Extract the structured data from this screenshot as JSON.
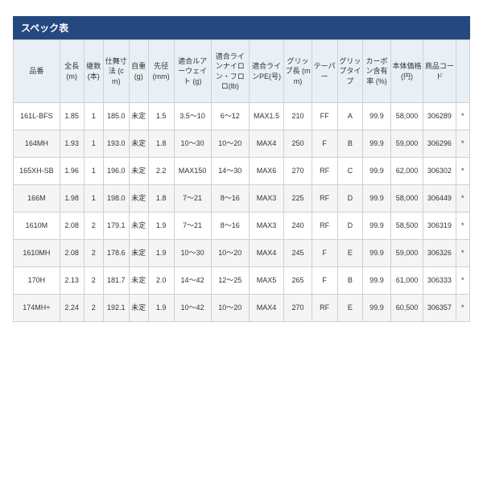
{
  "title": "スペック表",
  "colors": {
    "title_bg": "#244980",
    "title_fg": "#ffffff",
    "header_bg": "#e9f0f5",
    "border": "#d0d0d0",
    "row_even_bg": "#f5f5f5",
    "row_odd_bg": "#ffffff",
    "text": "#333333"
  },
  "typography": {
    "title_fontsize_pt": 9,
    "cell_fontsize_pt": 7
  },
  "columns": [
    {
      "key": "model",
      "label": "品番"
    },
    {
      "key": "length",
      "label": "全長\n(m)"
    },
    {
      "key": "pieces",
      "label": "継数\n(本)"
    },
    {
      "key": "stowed",
      "label": "仕舞寸法\n(cm)"
    },
    {
      "key": "weight",
      "label": "自重\n(g)"
    },
    {
      "key": "tip",
      "label": "先径\n(mm)"
    },
    {
      "key": "lure",
      "label": "適合ルアーウェイト\n(g)"
    },
    {
      "key": "nylon",
      "label": "適合ラインナイロン・フロロ(lb)"
    },
    {
      "key": "pe",
      "label": "適合ラインPE(号)"
    },
    {
      "key": "grip",
      "label": "グリップ長\n(mm)"
    },
    {
      "key": "taper",
      "label": "テーパー"
    },
    {
      "key": "griptype",
      "label": "グリップタイプ"
    },
    {
      "key": "carbon",
      "label": "カーボン含有率\n(%)"
    },
    {
      "key": "price",
      "label": "本体価格\n(円)"
    },
    {
      "key": "code",
      "label": "商品コード"
    },
    {
      "key": "star",
      "label": ""
    }
  ],
  "rows": [
    [
      "161L-BFS",
      "1.85",
      "1",
      "185.0",
      "未定",
      "1.5",
      "3.5～10",
      "6～12",
      "MAX1.5",
      "210",
      "FF",
      "A",
      "99.9",
      "58,000",
      "306289",
      "*"
    ],
    [
      "164MH",
      "1.93",
      "1",
      "193.0",
      "未定",
      "1.8",
      "10～30",
      "10～20",
      "MAX4",
      "250",
      "F",
      "B",
      "99.9",
      "59,000",
      "306296",
      "*"
    ],
    [
      "165XH-SB",
      "1.96",
      "1",
      "196.0",
      "未定",
      "2.2",
      "MAX150",
      "14～30",
      "MAX6",
      "270",
      "RF",
      "C",
      "99.9",
      "62,000",
      "306302",
      "*"
    ],
    [
      "166M",
      "1.98",
      "1",
      "198.0",
      "未定",
      "1.8",
      "7～21",
      "8～16",
      "MAX3",
      "225",
      "RF",
      "D",
      "99.9",
      "58,000",
      "306449",
      "*"
    ],
    [
      "1610M",
      "2.08",
      "2",
      "179.1",
      "未定",
      "1.9",
      "7～21",
      "8～16",
      "MAX3",
      "240",
      "RF",
      "D",
      "99.9",
      "58,500",
      "306319",
      "*"
    ],
    [
      "1610MH",
      "2.08",
      "2",
      "178.6",
      "未定",
      "1.9",
      "10～30",
      "10～20",
      "MAX4",
      "245",
      "F",
      "E",
      "99.9",
      "59,000",
      "306326",
      "*"
    ],
    [
      "170H",
      "2.13",
      "2",
      "181.7",
      "未定",
      "2.0",
      "14～42",
      "12～25",
      "MAX5",
      "265",
      "F",
      "B",
      "99.9",
      "61,000",
      "306333",
      "*"
    ],
    [
      "174MH+",
      "2.24",
      "2",
      "192.1",
      "未定",
      "1.9",
      "10～42",
      "10～20",
      "MAX4",
      "270",
      "RF",
      "E",
      "99.9",
      "60,500",
      "306357",
      "*"
    ]
  ]
}
